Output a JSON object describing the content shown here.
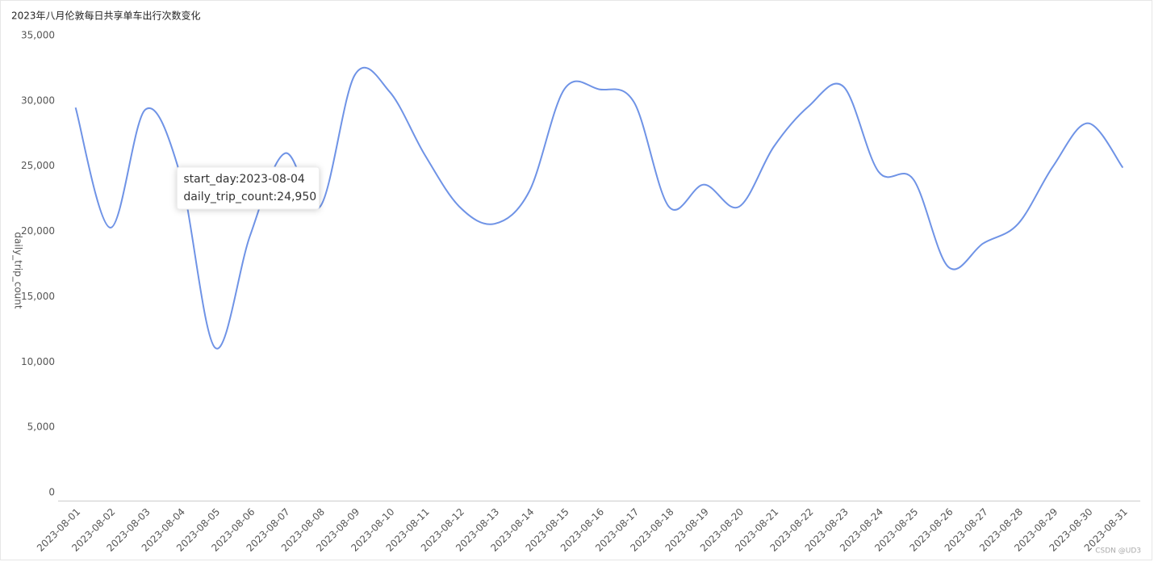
{
  "chart_data": {
    "type": "line",
    "title": "2023年八月伦敦每日共享单车出行次数变化",
    "y_label": "daily_trip_count",
    "categories": [
      "2023-08-01",
      "2023-08-02",
      "2023-08-03",
      "2023-08-04",
      "2023-08-05",
      "2023-08-06",
      "2023-08-07",
      "2023-08-08",
      "2023-08-09",
      "2023-08-10",
      "2023-08-11",
      "2023-08-12",
      "2023-08-13",
      "2023-08-14",
      "2023-08-15",
      "2023-08-16",
      "2023-08-17",
      "2023-08-18",
      "2023-08-19",
      "2023-08-20",
      "2023-08-21",
      "2023-08-22",
      "2023-08-23",
      "2023-08-24",
      "2023-08-25",
      "2023-08-26",
      "2023-08-27",
      "2023-08-28",
      "2023-08-29",
      "2023-08-30",
      "2023-08-31"
    ],
    "series": [
      {
        "name": "daily_trip_count",
        "color": "#6f93e6",
        "values": [
          30100,
          20900,
          29950,
          24950,
          11700,
          20300,
          26600,
          22500,
          32600,
          31300,
          26500,
          22500,
          21200,
          23700,
          31500,
          31500,
          30500,
          22500,
          24200,
          22500,
          27100,
          30200,
          31700,
          25200,
          24600,
          17900,
          19700,
          21200,
          25600,
          28900,
          25500
        ]
      }
    ],
    "ylim": [
      0,
      35000
    ],
    "yticks": [
      0,
      {
        "value": 5000,
        "label": "5,000"
      },
      {
        "value": 10000,
        "label": "10,000"
      },
      {
        "value": 15000,
        "label": "15,000"
      },
      {
        "value": 20000,
        "label": "20,000"
      },
      {
        "value": 25000,
        "label": "25,000"
      },
      {
        "value": 30000,
        "label": "30,000"
      },
      {
        "value": 35000,
        "label": "35,000"
      }
    ],
    "grid": false,
    "tooltip": {
      "index": 3,
      "lines": [
        "start_day:2023-08-04",
        "daily_trip_count:24,950"
      ]
    },
    "watermark": "CSDN @UD3"
  }
}
